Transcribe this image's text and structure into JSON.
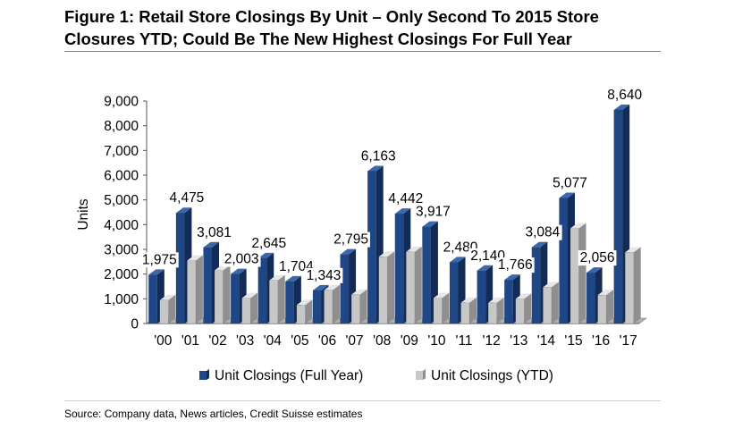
{
  "figure": {
    "title_line1": "Figure 1: Retail Store Closings By Unit – Only Second To 2015 Store",
    "title_line2": "Closures YTD; Could Be The New Highest Closings For Full Year",
    "source": "Source: Company data, News articles, Credit Suisse estimates"
  },
  "colors": {
    "full_year_front": "#1f4788",
    "full_year_side": "#122c57",
    "full_year_top": "#3b67ad",
    "ytd_front": "#c7c7c7",
    "ytd_side": "#8f8f8f",
    "ytd_top": "#e6e6e6"
  },
  "chart_data": {
    "type": "bar",
    "categories": [
      "'00",
      "'01",
      "'02",
      "'03",
      "'04",
      "'05",
      "'06",
      "'07",
      "'08",
      "'09",
      "'10",
      "'11",
      "'12",
      "'13",
      "'14",
      "'15",
      "'16",
      "'17"
    ],
    "series": [
      {
        "name": "Unit Closings (Full Year)",
        "values": [
          1975,
          4475,
          3081,
          2003,
          2645,
          1704,
          1343,
          2795,
          6163,
          4442,
          3917,
          2480,
          2140,
          1766,
          3084,
          5077,
          2056,
          8640
        ],
        "labels": [
          "1,975",
          "4,475",
          "3,081",
          "2,003",
          "2,645",
          "1,704",
          "1,343",
          "2,795",
          "6,163",
          "4,442",
          "3,917",
          "2,480",
          "2,140",
          "1,766",
          "3,084",
          "5,077",
          "2,056",
          "8,640"
        ]
      },
      {
        "name": "Unit Closings (YTD)",
        "values": [
          950,
          2550,
          2150,
          1030,
          1750,
          750,
          1350,
          1170,
          2700,
          2900,
          1030,
          840,
          840,
          1000,
          1470,
          3850,
          1150,
          2880
        ]
      }
    ],
    "ylabel": "Units",
    "xlabel": "",
    "ylim": [
      0,
      9000
    ],
    "yticks": [
      "0",
      "1,000",
      "2,000",
      "3,000",
      "4,000",
      "5,000",
      "6,000",
      "7,000",
      "8,000",
      "9,000"
    ],
    "grid": false,
    "legend": "bottom",
    "style": "3d"
  }
}
